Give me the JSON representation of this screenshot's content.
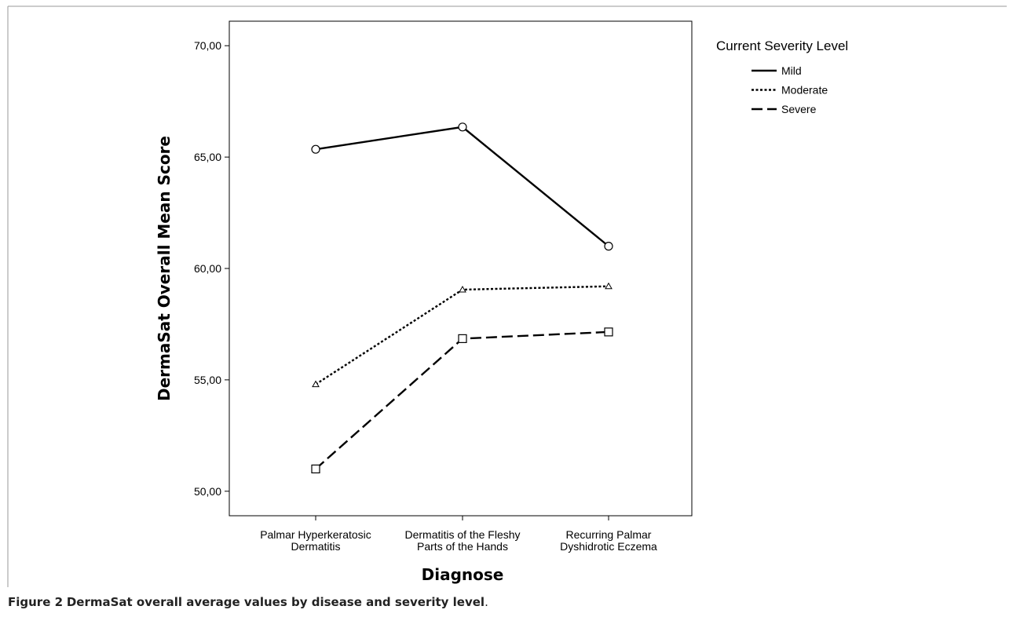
{
  "chart_data": {
    "type": "line",
    "xlabel": "Diagnose",
    "ylabel": "DermaSat Overall Mean Score",
    "ylim": [
      48.9,
      71.1
    ],
    "yticks": [
      50,
      55,
      60,
      65,
      70
    ],
    "ytick_labels": [
      "50,00",
      "55,00",
      "60,00",
      "65,00",
      "70,00"
    ],
    "categories": [
      [
        "Palmar Hyperkeratosic",
        "Dermatitis"
      ],
      [
        "Dermatitis of the Fleshy",
        "Parts of the Hands"
      ],
      [
        "Recurring Palmar",
        "Dyshidrotic Eczema"
      ]
    ],
    "legend": {
      "title": "Current Severity Level",
      "placement": "right"
    },
    "series": [
      {
        "name": "Mild",
        "values": [
          65.35,
          66.35,
          61.0
        ],
        "marker": "circle",
        "dash": "solid"
      },
      {
        "name": "Moderate",
        "values": [
          54.8,
          59.05,
          59.2
        ],
        "marker": "triangle",
        "dash": "dotted"
      },
      {
        "name": "Severe",
        "values": [
          51.0,
          56.85,
          57.15
        ],
        "marker": "square",
        "dash": "dashed"
      }
    ],
    "grid": false
  },
  "caption": {
    "label": "Figure 2",
    "text": "DermaSat overall average values by disease and severity level",
    "end": "."
  }
}
